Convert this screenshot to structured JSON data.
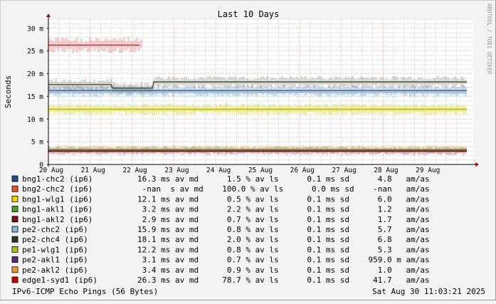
{
  "chart_data": {
    "type": "line",
    "title": "Last 10 Days",
    "ylabel": "Seconds",
    "watermark": "RRDTOOL / TOBI OETIKER",
    "ylim": [
      0,
      32
    ],
    "y_ticks": [
      0,
      5,
      10,
      15,
      20,
      25,
      30
    ],
    "y_tick_labels": [
      "0",
      "5 m",
      "10 m",
      "15 m",
      "20 m",
      "25 m",
      "30 m"
    ],
    "x_tick_labels": [
      "20 Aug",
      "21 Aug",
      "22 Aug",
      "23 Aug",
      "24 Aug",
      "25 Aug",
      "26 Aug",
      "27 Aug",
      "28 Aug",
      "29 Aug"
    ],
    "x_range_days": [
      0,
      10
    ],
    "grid": true,
    "series": [
      {
        "name": "bng1-chc2 (ip6)",
        "color": "#1f4e8c",
        "values": [
          16.3,
          16.3,
          16.3,
          16.3,
          16.3,
          16.3,
          16.3,
          16.3,
          16.3,
          16.3,
          16.3
        ],
        "stats": "16.3 ms av md      1.5 % av ls      0.1 ms sd      4.8   am/as"
      },
      {
        "name": "bng2-chc2 (ip6)",
        "color": "#e8571f",
        "values": [],
        "stats": " -nan  s av md    100.0 % av ls      0.0 ms sd    -nan   am/as"
      },
      {
        "name": "bng1-wlg1 (ip6)",
        "color": "#f0d000",
        "values": [
          12.1,
          12.1,
          12.1,
          12.1,
          12.1,
          12.1,
          12.1,
          12.1,
          12.1,
          12.1,
          12.1
        ],
        "stats": "12.1 ms av md      0.5 % av ls      0.1 ms sd      6.0   am/as"
      },
      {
        "name": "bng1-akl1 (ip6)",
        "color": "#4f9a2a",
        "values": [
          3.2,
          3.2,
          3.2,
          3.2,
          3.2,
          3.2,
          3.2,
          3.2,
          3.2,
          3.2,
          3.2
        ],
        "stats": " 3.2 ms av md      2.2 % av ls      0.1 ms sd      1.2   am/as"
      },
      {
        "name": "bng1-akl2 (ip6)",
        "color": "#7a0f1c",
        "values": [
          2.9,
          2.9,
          2.9,
          2.9,
          2.9,
          2.9,
          2.9,
          2.9,
          2.9,
          2.9,
          2.9
        ],
        "stats": " 2.9 ms av md      0.7 % av ls      0.1 ms sd      1.7   am/as"
      },
      {
        "name": "pe2-chc2 (ip6)",
        "color": "#7fbde8",
        "values": [
          15.9,
          15.9,
          15.9,
          15.9,
          15.9,
          15.9,
          15.9,
          15.9,
          15.9,
          15.9,
          15.9
        ],
        "stats": "15.9 ms av md      0.8 % av ls      0.1 ms sd      5.7   am/as"
      },
      {
        "name": "pe2-chc4 (ip6)",
        "color": "#2e3b1a",
        "values": [
          17.6,
          17.6,
          16.8,
          18.2,
          18.2,
          18.2,
          18.2,
          18.2,
          18.2,
          18.2,
          18.2
        ],
        "stats": "18.1 ms av md      2.0 % av ls      0.1 ms sd      6.8   am/as"
      },
      {
        "name": "pe1-wlg1 (ip6)",
        "color": "#a5c800",
        "values": [
          12.2,
          12.2,
          12.2,
          12.2,
          12.2,
          12.2,
          12.2,
          12.2,
          12.2,
          12.2,
          12.2
        ],
        "stats": "12.2 ms av md      0.8 % av ls      0.1 ms sd      5.3   am/as"
      },
      {
        "name": "pe2-akl1 (ip6)",
        "color": "#5a2a7a",
        "values": [
          3.1,
          3.1,
          3.1,
          3.1,
          3.1,
          3.1,
          3.1,
          3.1,
          3.1,
          3.1,
          3.1
        ],
        "stats": " 3.1 ms av md      0.7 % av ls      0.1 ms sd    959.0 m am/as"
      },
      {
        "name": "pe2-akl2 (ip6)",
        "color": "#f59a1c",
        "values": [
          3.4,
          3.4,
          3.4,
          3.4,
          3.4,
          3.4,
          3.4,
          3.4,
          3.4,
          3.4,
          3.4
        ],
        "stats": " 3.4 ms av md      0.9 % av ls      0.1 ms sd      1.0   am/as"
      },
      {
        "name": "edge1-syd1 (ip6)",
        "color": "#c80000",
        "values": [
          26.3,
          26.3,
          26.3
        ],
        "x_span_days": [
          0,
          2.2
        ],
        "stats": "26.3 ms av md     78.7 % av ls      0.1 ms sd     41.7   am/as"
      }
    ],
    "footer_left": "IPv6-ICMP Echo Pings (56 Bytes)",
    "footer_right": "Sat Aug 30 11:03:21 2025"
  }
}
